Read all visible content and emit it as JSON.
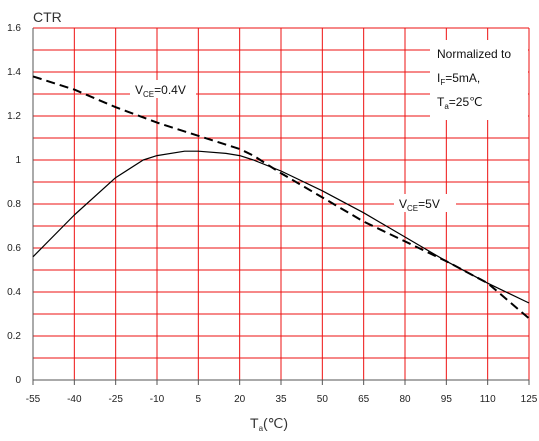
{
  "chart_data": {
    "type": "line",
    "x_ticks": [
      -55,
      -40,
      -25,
      -10,
      5,
      20,
      35,
      50,
      65,
      80,
      95,
      110,
      125
    ],
    "y_ticks": [
      "0",
      "0.2",
      "0.4",
      "0.6",
      "0.8",
      "1",
      "1.2",
      "1.4",
      "1.6"
    ],
    "ylim": [
      0,
      1.6
    ],
    "ylabel": "CTR",
    "xlabel": {
      "main": "T",
      "sub": "a",
      "unit": "(℃)"
    },
    "grid": true,
    "colors": {
      "grid": "#ee1111",
      "curve": "#000000",
      "axis": "#555555"
    },
    "series": [
      {
        "label": {
          "main": "V",
          "sub": "CE",
          "rest": "=0.4V"
        },
        "style": "dashed",
        "points": [
          [
            -55,
            1.38
          ],
          [
            -40,
            1.32
          ],
          [
            -25,
            1.24
          ],
          [
            -10,
            1.17
          ],
          [
            5,
            1.11
          ],
          [
            20,
            1.05
          ],
          [
            25,
            1.02
          ],
          [
            35,
            0.94
          ],
          [
            50,
            0.83
          ],
          [
            65,
            0.72
          ],
          [
            80,
            0.63
          ],
          [
            95,
            0.54
          ],
          [
            110,
            0.44
          ],
          [
            125,
            0.28
          ]
        ]
      },
      {
        "label": {
          "main": "V",
          "sub": "CE",
          "rest": "=5V"
        },
        "style": "solid",
        "points": [
          [
            -55,
            0.56
          ],
          [
            -40,
            0.75
          ],
          [
            -25,
            0.92
          ],
          [
            -15,
            1.0
          ],
          [
            -10,
            1.02
          ],
          [
            0,
            1.04
          ],
          [
            5,
            1.04
          ],
          [
            15,
            1.03
          ],
          [
            20,
            1.02
          ],
          [
            25,
            1.0
          ],
          [
            35,
            0.95
          ],
          [
            50,
            0.86
          ],
          [
            65,
            0.76
          ],
          [
            80,
            0.65
          ],
          [
            95,
            0.54
          ],
          [
            110,
            0.44
          ],
          [
            125,
            0.35
          ]
        ]
      }
    ],
    "annotation": {
      "line1": "Normalized to",
      "line2": {
        "main": "I",
        "sub": "F",
        "rest": "=5mA,"
      },
      "line3": {
        "main": "T",
        "sub": "a",
        "rest": "=25℃"
      }
    }
  }
}
